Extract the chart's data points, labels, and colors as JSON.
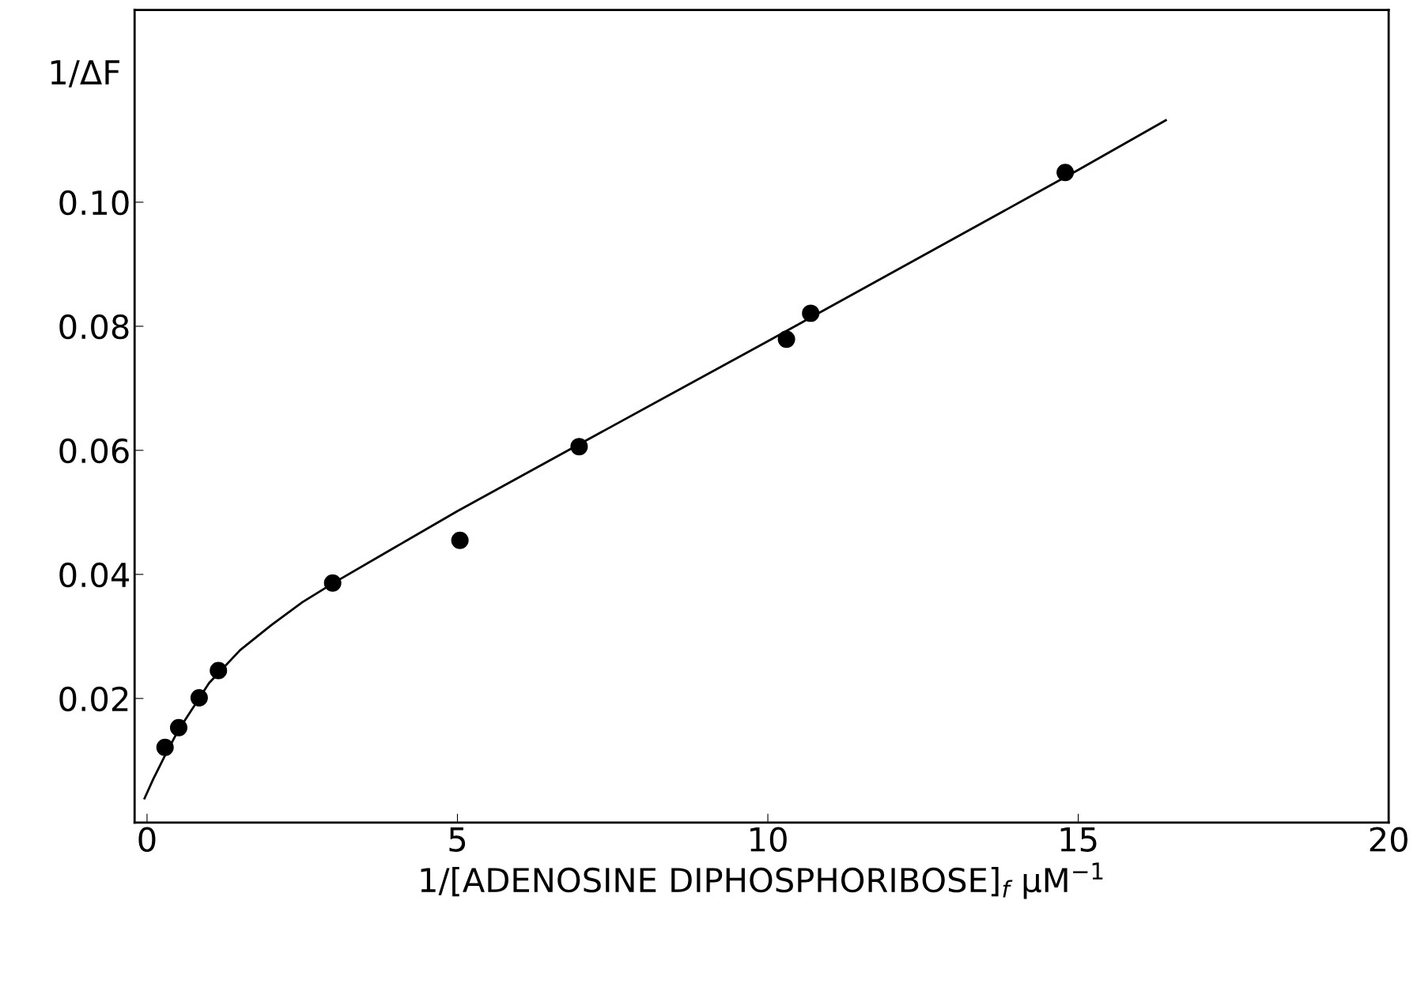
{
  "chart_data": {
    "type": "scatter",
    "xlabel": "1/[ADENOSINE DIPHOSPHORIBOSE]$_{f}$ μM$^{−1}$",
    "ylabel": "1/ΔF",
    "xlim": [
      -0.2,
      20
    ],
    "ylim": [
      0,
      0.131
    ],
    "xticks": [
      0,
      5,
      10,
      15,
      20
    ],
    "yticks": [
      0.02,
      0.04,
      0.06,
      0.08,
      {
        "value": 0.1,
        "label": "0.10"
      }
    ],
    "grid": false,
    "legend": false,
    "series": [
      {
        "color": "#000000",
        "marker": "circle",
        "x": [
          0.29,
          0.51,
          0.84,
          1.15,
          2.99,
          5.04,
          6.96,
          10.3,
          10.69,
          14.79
        ],
        "values": [
          0.0121,
          0.0153,
          0.0201,
          0.0245,
          0.0386,
          0.0455,
          0.0606,
          0.0779,
          0.0821,
          0.1048
        ]
      },
      {
        "type": "line",
        "color": "#000000",
        "marker": "none",
        "line_style": "solid",
        "x": [
          -0.04,
          0.1,
          0.3,
          0.5,
          1.0,
          1.5,
          2.0,
          2.5,
          3.0,
          4.0,
          5.0,
          7.0,
          10.0,
          15.0,
          16.41
        ],
        "values": [
          0.0039,
          0.007,
          0.011,
          0.0148,
          0.0225,
          0.0278,
          0.0318,
          0.0355,
          0.0386,
          0.0444,
          0.0502,
          0.0612,
          0.0776,
          0.1052,
          0.1132
        ]
      }
    ]
  }
}
